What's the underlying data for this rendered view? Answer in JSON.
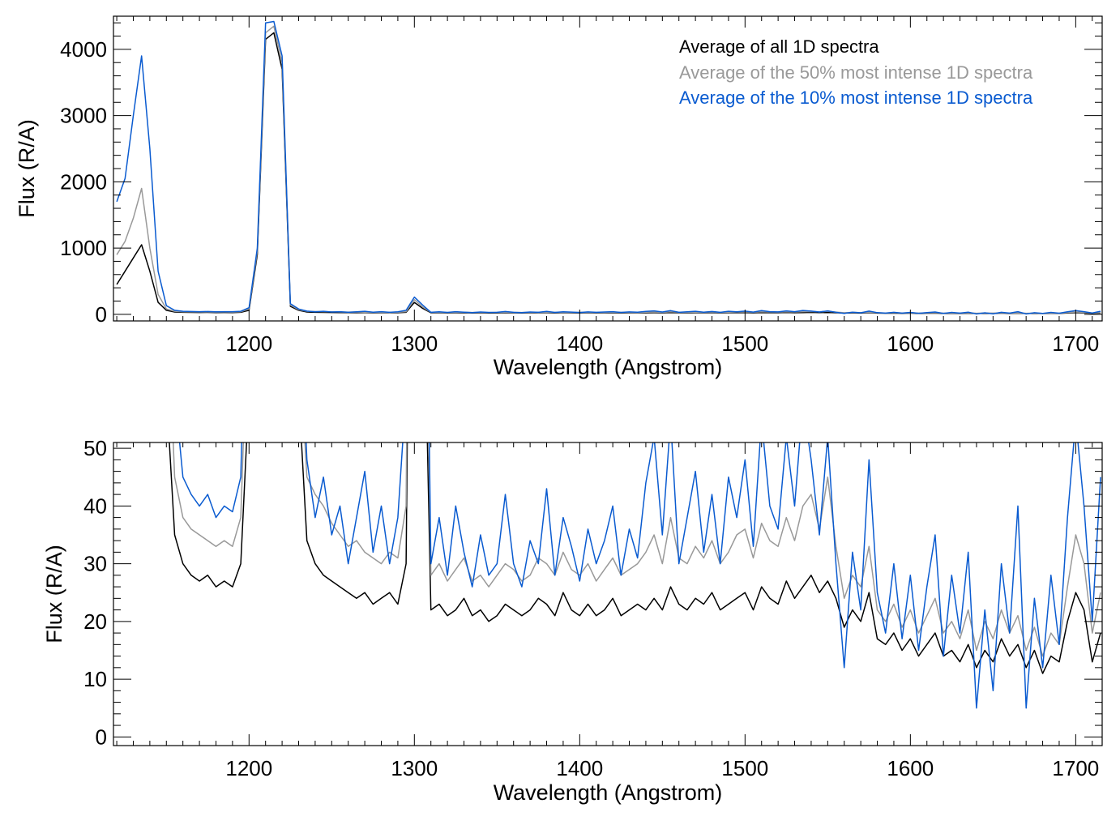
{
  "chart_data": [
    {
      "type": "line",
      "title": "",
      "xlabel": "Wavelength (Angstrom)",
      "ylabel": "Flux (R/A)",
      "xlim": [
        1118,
        1716
      ],
      "ylim": [
        -100,
        4500
      ],
      "xticks": [
        1200,
        1300,
        1400,
        1500,
        1600,
        1700
      ],
      "yticks": [
        0,
        1000,
        2000,
        3000,
        4000
      ],
      "x_minor_step": 10,
      "y_minor_step": 200,
      "legend_placement": "top-right",
      "legend": [
        "Average of all 1D spectra",
        "Average of the 50% most intense 1D spectra",
        "Average of the 10% most intense 1D spectra"
      ],
      "series_ref": "spectra"
    },
    {
      "type": "line",
      "title": "",
      "xlabel": "Wavelength (Angstrom)",
      "ylabel": "Flux (R/A)",
      "xlim": [
        1118,
        1716
      ],
      "ylim": [
        -1.5,
        51
      ],
      "xticks": [
        1200,
        1300,
        1400,
        1500,
        1600,
        1700
      ],
      "yticks": [
        0,
        10,
        20,
        30,
        40,
        50
      ],
      "x_minor_step": 10,
      "y_minor_step": 2,
      "series_ref": "spectra"
    }
  ],
  "spectra": {
    "x_start": 1120,
    "x_step": 5,
    "series": [
      {
        "name": "Average of all 1D spectra",
        "color": "#000000",
        "values": [
          450,
          650,
          850,
          1050,
          650,
          180,
          60,
          35,
          30,
          28,
          27,
          28,
          26,
          27,
          26,
          30,
          60,
          900,
          4150,
          4250,
          3700,
          120,
          60,
          34,
          30,
          28,
          27,
          26,
          25,
          24,
          25,
          23,
          24,
          25,
          23,
          30,
          180,
          90,
          22,
          23,
          21,
          22,
          24,
          21,
          22,
          20,
          21,
          23,
          22,
          21,
          22,
          24,
          23,
          21,
          25,
          22,
          21,
          23,
          21,
          22,
          24,
          21,
          22,
          23,
          22,
          24,
          22,
          26,
          23,
          22,
          24,
          23,
          25,
          22,
          23,
          24,
          25,
          22,
          26,
          24,
          23,
          27,
          24,
          26,
          28,
          25,
          27,
          24,
          19,
          22,
          20,
          25,
          17,
          16,
          18,
          15,
          17,
          14,
          16,
          18,
          14,
          15,
          13,
          16,
          12,
          15,
          13,
          17,
          14,
          16,
          12,
          15,
          11,
          14,
          13,
          20,
          25,
          22,
          13,
          18
        ]
      },
      {
        "name": "Average of the 50% most intense 1D spectra",
        "color": "#999999",
        "values": [
          900,
          1100,
          1450,
          1900,
          1000,
          300,
          80,
          45,
          38,
          36,
          35,
          34,
          33,
          34,
          33,
          38,
          80,
          950,
          4250,
          4350,
          3800,
          140,
          70,
          45,
          42,
          40,
          37,
          35,
          33,
          34,
          32,
          31,
          30,
          32,
          31,
          40,
          220,
          110,
          28,
          30,
          27,
          29,
          31,
          27,
          28,
          26,
          28,
          30,
          29,
          27,
          28,
          31,
          30,
          28,
          32,
          29,
          28,
          30,
          27,
          29,
          31,
          28,
          29,
          30,
          32,
          35,
          30,
          38,
          31,
          30,
          33,
          31,
          34,
          30,
          32,
          35,
          36,
          31,
          37,
          34,
          33,
          38,
          34,
          40,
          42,
          36,
          45,
          33,
          24,
          28,
          26,
          33,
          22,
          20,
          23,
          19,
          22,
          18,
          21,
          24,
          18,
          20,
          17,
          22,
          15,
          20,
          17,
          22,
          18,
          21,
          15,
          19,
          14,
          18,
          16,
          26,
          35,
          30,
          18,
          25
        ]
      },
      {
        "name": "Average of the 10% most intense 1D spectra",
        "color": "#0a5bd0",
        "values": [
          1700,
          2050,
          3000,
          3900,
          2500,
          650,
          130,
          60,
          45,
          42,
          40,
          42,
          38,
          40,
          39,
          45,
          100,
          1000,
          4400,
          4420,
          3900,
          160,
          80,
          48,
          38,
          45,
          35,
          40,
          30,
          38,
          46,
          32,
          40,
          30,
          38,
          60,
          260,
          140,
          30,
          38,
          28,
          40,
          32,
          26,
          35,
          28,
          30,
          42,
          30,
          26,
          34,
          30,
          43,
          28,
          38,
          33,
          27,
          36,
          30,
          34,
          40,
          28,
          36,
          31,
          44,
          52,
          35,
          55,
          30,
          38,
          46,
          32,
          42,
          30,
          45,
          38,
          48,
          33,
          55,
          40,
          36,
          52,
          40,
          58,
          48,
          35,
          52,
          30,
          12,
          32,
          22,
          48,
          25,
          18,
          30,
          17,
          28,
          15,
          26,
          35,
          14,
          28,
          18,
          32,
          5,
          22,
          8,
          30,
          18,
          40,
          5,
          24,
          12,
          28,
          16,
          38,
          55,
          40,
          20,
          45
        ]
      }
    ]
  }
}
